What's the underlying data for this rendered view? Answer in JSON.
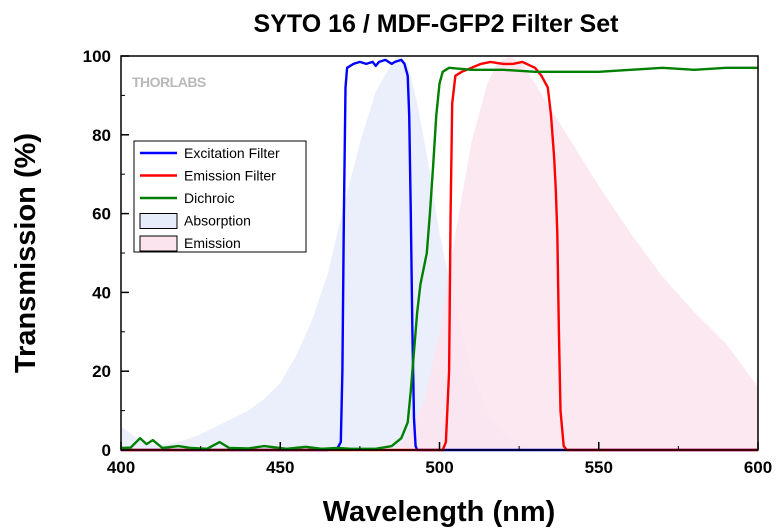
{
  "chart_data": {
    "type": "line",
    "title": "SYTO 16 / MDF-GFP2 Filter Set",
    "xlabel": "Wavelength (nm)",
    "ylabel": "Transmission (%)",
    "xlim": [
      400,
      600
    ],
    "ylim": [
      0,
      100
    ],
    "xticks": [
      400,
      450,
      500,
      550,
      600
    ],
    "yticks": [
      0,
      20,
      40,
      60,
      80,
      100
    ],
    "grid": false,
    "legend_position": "upper-left",
    "watermark": "THORLABS",
    "series": [
      {
        "name": "Excitation Filter",
        "kind": "line",
        "color": "#0000ff",
        "points": [
          [
            400,
            0
          ],
          [
            465,
            0
          ],
          [
            468,
            0.5
          ],
          [
            469,
            2
          ],
          [
            469.5,
            20
          ],
          [
            470,
            60
          ],
          [
            470.5,
            92
          ],
          [
            471,
            97
          ],
          [
            473,
            98
          ],
          [
            475,
            98.5
          ],
          [
            477,
            98
          ],
          [
            479,
            98.5
          ],
          [
            480,
            97.5
          ],
          [
            481,
            98.5
          ],
          [
            483,
            99
          ],
          [
            485,
            98
          ],
          [
            486,
            98.5
          ],
          [
            488,
            99
          ],
          [
            489,
            98
          ],
          [
            490,
            95
          ],
          [
            490.5,
            85
          ],
          [
            491,
            60
          ],
          [
            491.5,
            30
          ],
          [
            492,
            8
          ],
          [
            492.5,
            1
          ],
          [
            493,
            0
          ],
          [
            600,
            0
          ]
        ]
      },
      {
        "name": "Emission Filter",
        "kind": "line",
        "color": "#ff0000",
        "points": [
          [
            400,
            0
          ],
          [
            501,
            0
          ],
          [
            502,
            2
          ],
          [
            503,
            20
          ],
          [
            503.5,
            60
          ],
          [
            504,
            88
          ],
          [
            505,
            95
          ],
          [
            507,
            96
          ],
          [
            510,
            97
          ],
          [
            513,
            98
          ],
          [
            516,
            98.5
          ],
          [
            520,
            98
          ],
          [
            523,
            98
          ],
          [
            526,
            98.5
          ],
          [
            530,
            97
          ],
          [
            532,
            95
          ],
          [
            534,
            92
          ],
          [
            535,
            85
          ],
          [
            536,
            74
          ],
          [
            536.5,
            66
          ],
          [
            537,
            55
          ],
          [
            537.5,
            30
          ],
          [
            538,
            10
          ],
          [
            539,
            1
          ],
          [
            540,
            0
          ],
          [
            600,
            0
          ]
        ]
      },
      {
        "name": "Dichroic",
        "kind": "line",
        "color": "#008000",
        "points": [
          [
            400,
            0.5
          ],
          [
            403,
            0.6
          ],
          [
            406,
            3
          ],
          [
            408,
            1.5
          ],
          [
            410,
            2.5
          ],
          [
            413,
            0.5
          ],
          [
            418,
            1
          ],
          [
            422,
            0.5
          ],
          [
            427,
            0.3
          ],
          [
            431,
            2
          ],
          [
            434,
            0.5
          ],
          [
            440,
            0.4
          ],
          [
            445,
            1
          ],
          [
            452,
            0.3
          ],
          [
            458,
            0.8
          ],
          [
            463,
            0.3
          ],
          [
            468,
            0.5
          ],
          [
            472,
            0.3
          ],
          [
            480,
            0.3
          ],
          [
            485,
            1
          ],
          [
            488,
            3
          ],
          [
            490,
            7
          ],
          [
            491,
            15
          ],
          [
            492,
            25
          ],
          [
            493,
            35
          ],
          [
            494,
            42
          ],
          [
            495,
            46
          ],
          [
            496,
            50
          ],
          [
            497,
            60
          ],
          [
            498,
            72
          ],
          [
            499,
            85
          ],
          [
            500,
            93
          ],
          [
            501,
            96
          ],
          [
            503,
            97
          ],
          [
            510,
            96.5
          ],
          [
            520,
            96.5
          ],
          [
            530,
            96
          ],
          [
            540,
            96
          ],
          [
            550,
            96
          ],
          [
            560,
            96.5
          ],
          [
            570,
            97
          ],
          [
            580,
            96.5
          ],
          [
            590,
            97
          ],
          [
            600,
            97
          ]
        ]
      },
      {
        "name": "Absorption",
        "kind": "area",
        "color": "#e7ecfa",
        "points": [
          [
            400,
            6
          ],
          [
            405,
            3
          ],
          [
            410,
            1.5
          ],
          [
            415,
            1.5
          ],
          [
            420,
            2.5
          ],
          [
            425,
            4
          ],
          [
            430,
            6
          ],
          [
            435,
            8
          ],
          [
            440,
            10
          ],
          [
            445,
            13
          ],
          [
            450,
            17
          ],
          [
            455,
            24
          ],
          [
            460,
            33
          ],
          [
            465,
            45
          ],
          [
            470,
            62
          ],
          [
            475,
            78
          ],
          [
            480,
            91
          ],
          [
            485,
            98
          ],
          [
            487,
            100
          ],
          [
            490,
            98
          ],
          [
            493,
            88
          ],
          [
            496,
            75
          ],
          [
            500,
            55
          ],
          [
            505,
            36
          ],
          [
            510,
            20
          ],
          [
            515,
            10
          ],
          [
            520,
            4
          ],
          [
            525,
            1.5
          ],
          [
            530,
            0.5
          ],
          [
            540,
            0
          ],
          [
            600,
            0
          ]
        ]
      },
      {
        "name": "Emission",
        "kind": "area",
        "color": "#fbe4ee",
        "points": [
          [
            400,
            0
          ],
          [
            485,
            0
          ],
          [
            490,
            3
          ],
          [
            495,
            12
          ],
          [
            500,
            30
          ],
          [
            505,
            55
          ],
          [
            510,
            78
          ],
          [
            515,
            93
          ],
          [
            518,
            98
          ],
          [
            522,
            100
          ],
          [
            526,
            98
          ],
          [
            530,
            93
          ],
          [
            540,
            80
          ],
          [
            550,
            67
          ],
          [
            560,
            55
          ],
          [
            570,
            44
          ],
          [
            580,
            35
          ],
          [
            590,
            27
          ],
          [
            600,
            16
          ]
        ]
      }
    ]
  }
}
